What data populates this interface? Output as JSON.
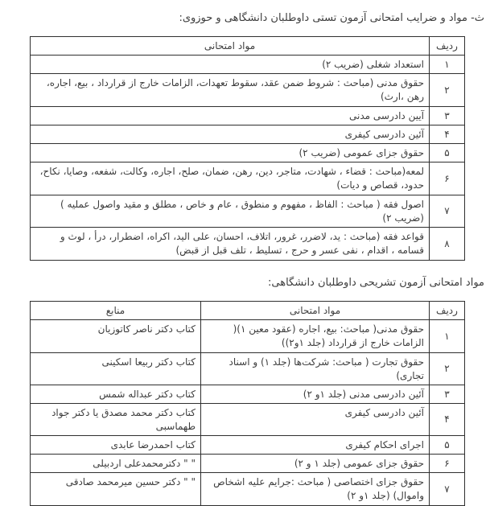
{
  "page": {
    "title_tasti": "ث- مواد و ضرایب امتحانی آزمون تستی داوطلبان دانشگاهی و حوزوی:",
    "title_tashrihi": "مواد امتحانی آزمون تشریحی داوطلبان دانشگاهی:"
  },
  "table1": {
    "headers": {
      "row": "ردیف",
      "subject": "مواد امتحانی"
    },
    "rows": [
      {
        "num": "۱",
        "subject": "استعداد شغلی (ضریب ۲)"
      },
      {
        "num": "۲",
        "subject": "حقوق مدنی (مباحث : شروط ضمن عقد، سقوط تعهدات، الزامات خارج از قرارداد ، بیع، اجاره، رهن ،ارث)"
      },
      {
        "num": "۳",
        "subject": "آیین دادرسی مدنی"
      },
      {
        "num": "۴",
        "subject": "آئین دادرسی کیفری"
      },
      {
        "num": "۵",
        "subject": "حقوق جزای عمومی (ضریب ۲)"
      },
      {
        "num": "۶",
        "subject": "لمعه(مباحث : قضاء ، شهادت، متاجر، دین، رهن، ضمان، صلح، اجاره، وکالت، شفعه، وصایا، نکاح، حدود، قصاص و دیات)"
      },
      {
        "num": "۷",
        "subject": "اصول فقه ( مباحث : الفاظ ، مفهوم و منطوق ، عام و خاص ، مطلق و مقید واصول عملیه ) (ضریب ۲)"
      },
      {
        "num": "۸",
        "subject": "قواعد فقه (مباحث : ید، لاضرر، غرور، اتلاف، احسان، علی الید، اکراه، اضطرار، درأ ، لوث و قسامه ، اقدام ، نفی عسر و حرج ، تسلیط ، تلف قبل از قبض)"
      }
    ]
  },
  "table2": {
    "headers": {
      "row": "ردیف",
      "subject": "مواد امتحانی",
      "source": "منابع"
    },
    "rows": [
      {
        "num": "۱",
        "subject": "حقوق مدنی( مباحث: بیع، اجاره (عقود معین ۱)( الزامات خارج از قرارداد (جلد ۱و۲))",
        "source": "کتاب دکتر ناصر کاتوزیان"
      },
      {
        "num": "۲",
        "subject": "حقوق تجارت ( مباحث: شرکت‌ها (جلد ۱) و اسناد تجاری)",
        "source": "کتاب دکتر ربیعا اسکینی"
      },
      {
        "num": "۳",
        "subject": "آئین دادرسی مدنی (جلد ۱و ۲)",
        "source": "کتاب دکتر عبداله شمس"
      },
      {
        "num": "۴",
        "subject": "آئین دادرسی کیفری",
        "source": "کتاب دکتر محمد مصدق یا دکتر جواد طهماسبی"
      },
      {
        "num": "۵",
        "subject": "اجرای احکام کیفری",
        "source": "کتاب احمدرضا عابدی"
      },
      {
        "num": "۶",
        "subject": "حقوق جزای عمومی (جلد ۱ و ۲)",
        "source": "\" \" دکترمحمدعلی اردبیلی"
      },
      {
        "num": "۷",
        "subject": "حقوق جزای اختصاصی ( مباحث :جرایم علیه اشخاص واموال) (جلد ۱و ۲)",
        "source": "\" \" دکتر حسین میرمحمد صادقی"
      }
    ]
  }
}
